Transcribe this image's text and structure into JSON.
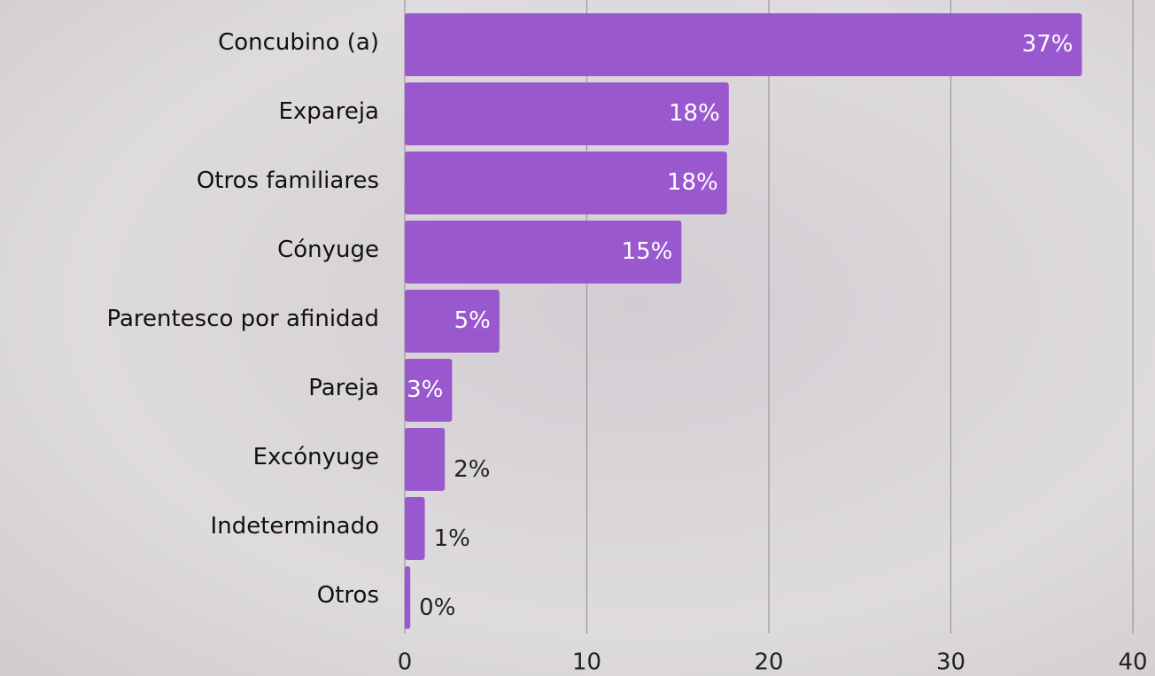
{
  "chart_data": {
    "type": "bar",
    "orientation": "horizontal",
    "categories": [
      "Concubino (a)",
      "Expareja",
      "Otros familiares",
      "Cónyuge",
      "Parentesco por afinidad",
      "Pareja",
      "Excónyuge",
      "Indeterminado",
      "Otros"
    ],
    "values": [
      37.2,
      17.8,
      17.7,
      15.2,
      5.2,
      2.6,
      2.2,
      1.1,
      0.3
    ],
    "value_labels": [
      "37%",
      "18%",
      "18%",
      "15%",
      "5%",
      "3%",
      "2%",
      "1%",
      "0%"
    ],
    "color": "#9a58cf",
    "xlim": [
      0,
      40
    ],
    "xticks": [
      0,
      10,
      20,
      30,
      40
    ],
    "grid": true
  }
}
